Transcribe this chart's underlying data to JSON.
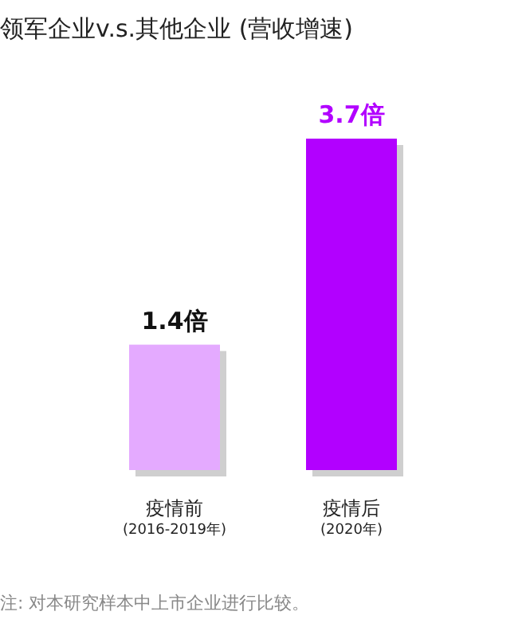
{
  "chart_data": {
    "type": "bar",
    "title": "领军企业v.s.其他企业 (营收增速)",
    "categories": [
      "疫情前\n(2016-2019年)",
      "疫情后\n(2020年)"
    ],
    "values": [
      1.4,
      3.7
    ],
    "colors": [
      "#e4aaff",
      "#b200ff"
    ],
    "value_labels": [
      "1.4倍",
      "3.7倍"
    ],
    "annotations": [
      "注: 对本研究样本中上市企业进行比较。"
    ],
    "grid": false
  }
}
